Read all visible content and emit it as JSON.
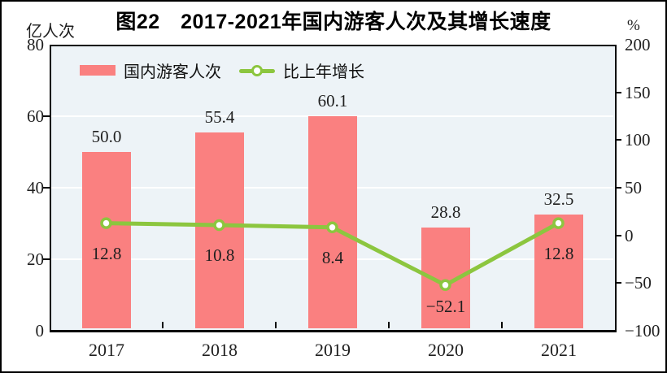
{
  "figure": {
    "title": "图22　2017-2021年国内游客人次及其增长速度",
    "left_axis_unit": "亿人次",
    "right_axis_unit": "%"
  },
  "legend": {
    "bar_label": "国内游客人次",
    "line_label": "比上年增长"
  },
  "colors": {
    "bar": "#fa8080",
    "line": "#8cc63f",
    "marker_fill": "#ffffff",
    "plot_background": "#edf3f7",
    "gridline": "#ffffff",
    "axis_line": "#000000",
    "text": "#1f1f1f"
  },
  "chart_data": {
    "type": "bar+line",
    "title": "图22　2017-2021年国内游客人次及其增长速度",
    "categories": [
      "2017",
      "2018",
      "2019",
      "2020",
      "2021"
    ],
    "series": [
      {
        "name": "国内游客人次",
        "type": "bar",
        "axis": "left",
        "values": [
          50.0,
          55.4,
          60.1,
          28.8,
          32.5
        ],
        "labels": [
          "50.0",
          "55.4",
          "60.1",
          "28.8",
          "32.5"
        ]
      },
      {
        "name": "比上年增长",
        "type": "line",
        "axis": "right",
        "values": [
          12.8,
          10.8,
          8.4,
          -52.1,
          12.8
        ],
        "labels": [
          "12.8",
          "10.8",
          "8.4",
          "-52.1",
          "12.8"
        ]
      }
    ],
    "left_axis": {
      "label": "亿人次",
      "min": 0,
      "max": 80,
      "ticks": [
        0,
        20,
        40,
        60,
        80
      ]
    },
    "right_axis": {
      "label": "%",
      "min": -100,
      "max": 200,
      "ticks": [
        -100,
        -50,
        0,
        50,
        100,
        150,
        200
      ]
    },
    "gridlines_at_left_values": [
      20,
      40,
      60
    ],
    "grid": true,
    "legend_position": "top-left-inside"
  }
}
